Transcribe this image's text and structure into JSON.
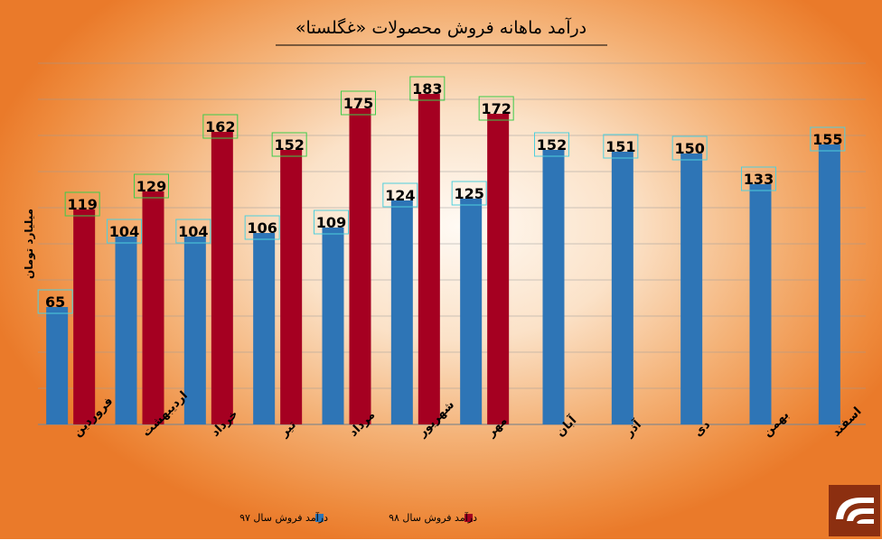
{
  "chart_data": {
    "type": "bar",
    "title": "درآمد ماهانه فروش محصولات «غگلستا»",
    "ylabel": "میلیارد تومان",
    "xlabel": "",
    "ylim": [
      0,
      200
    ],
    "grid": true,
    "legend_position": "bottom",
    "categories": [
      "فروردین",
      "اردیبهشت",
      "خرداد",
      "تیر",
      "مرداد",
      "شهریور",
      "مهر",
      "آبان",
      "آذر",
      "دی",
      "بهمن",
      "اسفند"
    ],
    "series": [
      {
        "name": "درآمد فروش سال ۹۷",
        "color": "#2e75b6",
        "label_border": "#4fcfdc",
        "values": [
          65,
          104,
          104,
          106,
          109,
          124,
          125,
          152,
          151,
          150,
          133,
          155
        ]
      },
      {
        "name": "درآمد فروش سال ۹۸",
        "color": "#a50021",
        "label_border": "#3dcc4a",
        "values": [
          119,
          129,
          162,
          152,
          175,
          183,
          172,
          null,
          null,
          null,
          null,
          null
        ]
      }
    ]
  },
  "colors": {
    "grid": "#9a9a9a",
    "text": "#000000"
  },
  "logo_icon": "company-logo-icon"
}
